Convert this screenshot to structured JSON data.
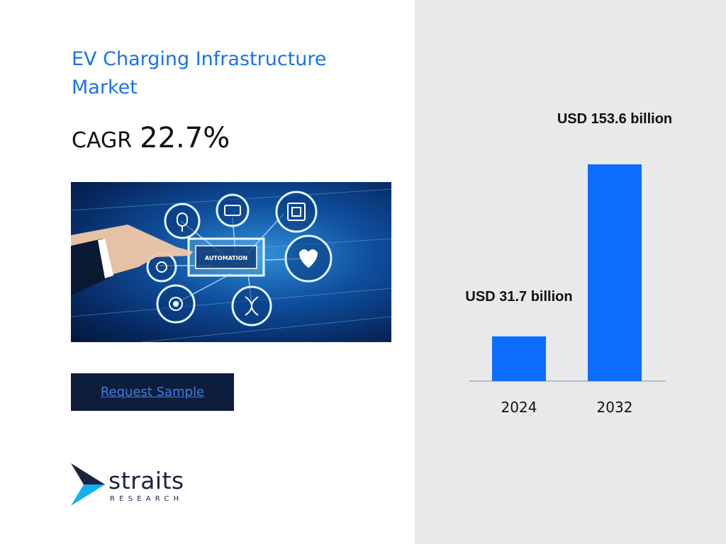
{
  "title": "EV Charging Infrastructure Market",
  "cagr": {
    "label": "CAGR",
    "value": "22.7%"
  },
  "hero_image": {
    "center_label": "AUTOMATION"
  },
  "cta": {
    "label": "Request Sample"
  },
  "brand": {
    "name": "straits",
    "tagline": "RESEARCH"
  },
  "colors": {
    "title": "#1a73e8",
    "bar": "#0d6efd",
    "button": "#0e1d3c",
    "right_bg": "#e8e9eb"
  },
  "chart_data": {
    "type": "bar",
    "categories": [
      "2024",
      "2032"
    ],
    "values": [
      31.7,
      153.6
    ],
    "data_labels": [
      "USD 31.7 billion",
      "USD 153.6 billion"
    ],
    "ylim": [
      0,
      153.6
    ],
    "grid": false,
    "legend": "none"
  }
}
